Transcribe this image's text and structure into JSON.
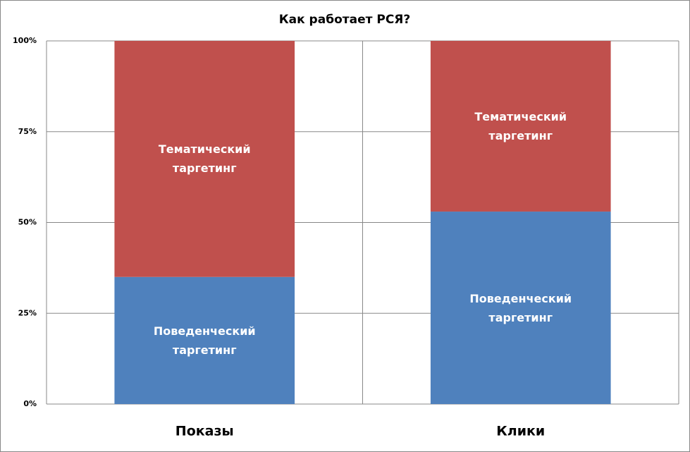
{
  "chart_data": {
    "type": "stacked_bar",
    "title": "Как работает РСЯ?",
    "categories": [
      "Показы",
      "Клики"
    ],
    "series": [
      {
        "name": "Поведенческий таргетинг",
        "color": "#4f81bd",
        "values": [
          35,
          53
        ]
      },
      {
        "name": "Тематический таргетинг",
        "color": "#c0504d",
        "values": [
          65,
          47
        ]
      }
    ],
    "ylim": [
      0,
      100
    ],
    "yticks": [
      {
        "value": 0,
        "label": "0%"
      },
      {
        "value": 25,
        "label": "25%"
      },
      {
        "value": 50,
        "label": "50%"
      },
      {
        "value": 75,
        "label": "75%"
      },
      {
        "value": 100,
        "label": "100%"
      }
    ],
    "grid": true
  }
}
